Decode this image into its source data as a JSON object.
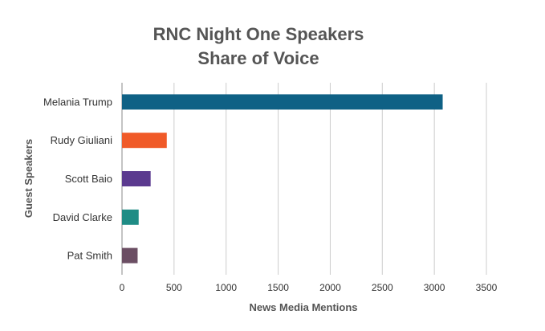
{
  "chart_data": {
    "type": "bar",
    "orientation": "horizontal",
    "title_line1": "RNC Night One Speakers",
    "title_line2": "Share of Voice",
    "xlabel": "News Media Mentions",
    "ylabel": "Guest Speakers",
    "xlim": [
      0,
      3500
    ],
    "xticks": [
      0,
      500,
      1000,
      1500,
      2000,
      2500,
      3000,
      3500
    ],
    "grid": "vertical",
    "legend": "none",
    "categories": [
      "Melania Trump",
      "Rudy Giuliani",
      "Scott Baio",
      "David Clarke",
      "Pat Smith"
    ],
    "values": [
      3080,
      430,
      275,
      160,
      150
    ],
    "colors": [
      "#0f6185",
      "#f05a28",
      "#5b3a8f",
      "#1f8c85",
      "#6b4e63"
    ]
  }
}
